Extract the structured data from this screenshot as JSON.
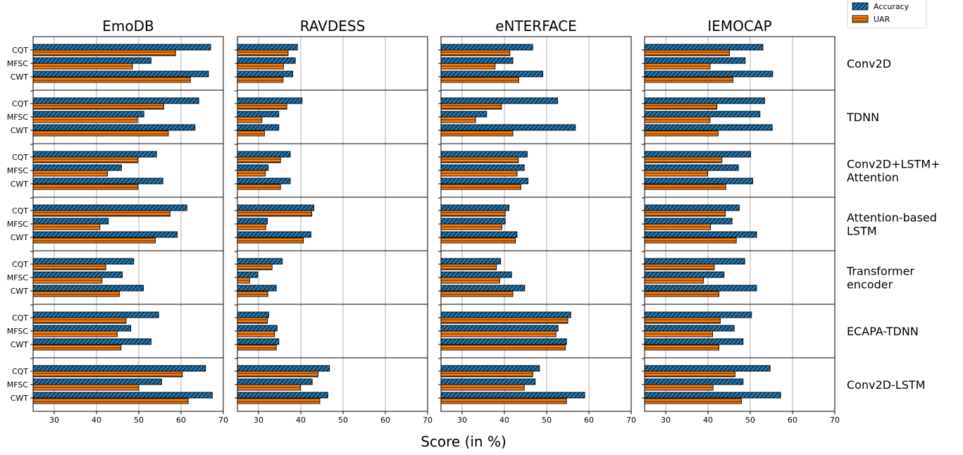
{
  "chart_data": {
    "type": "bar",
    "orientation": "horizontal",
    "xlabel": "Score (in %)",
    "xlim": [
      25,
      70
    ],
    "xticks": [
      "30",
      "40",
      "50",
      "60",
      "70"
    ],
    "grid": "vertical",
    "legend": {
      "placement": "top-right",
      "entries": [
        "Accuracy",
        "UAR"
      ]
    },
    "colors": {
      "Accuracy": "#1f77b4",
      "UAR": "#ff7f0e"
    },
    "hatch": {
      "Accuracy": "diagonal",
      "UAR": "horizontal"
    },
    "datasets": [
      "EmoDB",
      "RAVDESS",
      "eNTERFACE",
      "IEMOCAP"
    ],
    "models": [
      {
        "label": "Conv2D",
        "lines": [
          "Conv2D"
        ]
      },
      {
        "label": "TDNN",
        "lines": [
          "TDNN"
        ]
      },
      {
        "label": "Conv2D+LSTM+Attention",
        "lines": [
          "Conv2D+LSTM+",
          "Attention"
        ]
      },
      {
        "label": "Attention-based LSTM",
        "lines": [
          "Attention-based",
          "LSTM"
        ]
      },
      {
        "label": "Transformer encoder",
        "lines": [
          "Transformer",
          "encoder"
        ]
      },
      {
        "label": "ECAPA-TDNN",
        "lines": [
          "ECAPA-TDNN"
        ]
      },
      {
        "label": "Conv2D-LSTM",
        "lines": [
          "Conv2D-LSTM"
        ]
      }
    ],
    "features": [
      "CQT",
      "MFSC",
      "CWT"
    ],
    "values": {
      "EmoDB": [
        [
          [
            67.0,
            58.7
          ],
          [
            52.9,
            48.5
          ],
          [
            66.5,
            62.2
          ]
        ],
        [
          [
            64.2,
            55.9
          ],
          [
            51.2,
            49.7
          ],
          [
            63.3,
            57.0
          ]
        ],
        [
          [
            54.2,
            49.8
          ],
          [
            45.9,
            42.6
          ],
          [
            55.7,
            49.8
          ]
        ],
        [
          [
            61.4,
            57.4
          ],
          [
            42.8,
            40.8
          ],
          [
            59.1,
            53.9
          ]
        ],
        [
          [
            48.8,
            42.2
          ],
          [
            46.1,
            41.3
          ],
          [
            51.1,
            45.4
          ]
        ],
        [
          [
            54.7,
            47.0
          ],
          [
            48.1,
            44.9
          ],
          [
            52.9,
            45.8
          ]
        ],
        [
          [
            65.8,
            60.3
          ],
          [
            55.4,
            50.0
          ],
          [
            67.4,
            61.7
          ]
        ]
      ],
      "RAVDESS": [
        [
          [
            39.2,
            37.0
          ],
          [
            38.7,
            35.9
          ],
          [
            38.1,
            35.8
          ]
        ],
        [
          [
            40.3,
            36.7
          ],
          [
            34.8,
            30.8
          ],
          [
            34.8,
            31.4
          ]
        ],
        [
          [
            37.5,
            35.2
          ],
          [
            32.3,
            31.6
          ],
          [
            37.5,
            35.2
          ]
        ],
        [
          [
            43.1,
            42.6
          ],
          [
            32.1,
            31.7
          ],
          [
            42.4,
            40.6
          ]
        ],
        [
          [
            35.6,
            33.2
          ],
          [
            29.8,
            27.9
          ],
          [
            34.2,
            32.2
          ]
        ],
        [
          [
            32.4,
            32.1
          ],
          [
            34.4,
            33.8
          ],
          [
            34.8,
            34.2
          ]
        ],
        [
          [
            46.8,
            44.1
          ],
          [
            42.7,
            39.9
          ],
          [
            46.4,
            44.5
          ]
        ]
      ],
      "eNTERFACE": [
        [
          [
            46.7,
            41.3
          ],
          [
            42.0,
            37.8
          ],
          [
            49.1,
            43.4
          ]
        ],
        [
          [
            52.6,
            39.3
          ],
          [
            35.8,
            33.2
          ],
          [
            56.8,
            42.0
          ]
        ],
        [
          [
            45.4,
            43.3
          ],
          [
            44.7,
            43.0
          ],
          [
            45.6,
            43.9
          ]
        ],
        [
          [
            41.1,
            40.2
          ],
          [
            40.2,
            39.4
          ],
          [
            43.0,
            42.6
          ]
        ],
        [
          [
            39.1,
            38.1
          ],
          [
            41.7,
            38.9
          ],
          [
            44.8,
            42.0
          ]
        ],
        [
          [
            55.7,
            55.0
          ],
          [
            52.7,
            52.2
          ],
          [
            54.7,
            54.4
          ]
        ],
        [
          [
            48.3,
            46.7
          ],
          [
            47.3,
            44.7
          ],
          [
            59.0,
            54.7
          ]
        ]
      ],
      "IEMOCAP": [
        [
          [
            53.0,
            45.1
          ],
          [
            48.8,
            40.5
          ],
          [
            55.3,
            45.9
          ]
        ],
        [
          [
            53.4,
            42.1
          ],
          [
            52.3,
            40.5
          ],
          [
            55.2,
            42.4
          ]
        ],
        [
          [
            50.1,
            43.3
          ],
          [
            47.2,
            39.9
          ],
          [
            50.6,
            44.2
          ]
        ],
        [
          [
            47.4,
            44.1
          ],
          [
            45.7,
            40.6
          ],
          [
            51.5,
            46.7
          ]
        ],
        [
          [
            48.7,
            41.5
          ],
          [
            43.8,
            38.9
          ],
          [
            51.5,
            42.6
          ]
        ],
        [
          [
            50.3,
            42.9
          ],
          [
            46.2,
            41.1
          ],
          [
            48.3,
            42.6
          ]
        ],
        [
          [
            54.7,
            46.4
          ],
          [
            48.3,
            41.2
          ],
          [
            57.2,
            47.9
          ]
        ]
      ]
    }
  }
}
